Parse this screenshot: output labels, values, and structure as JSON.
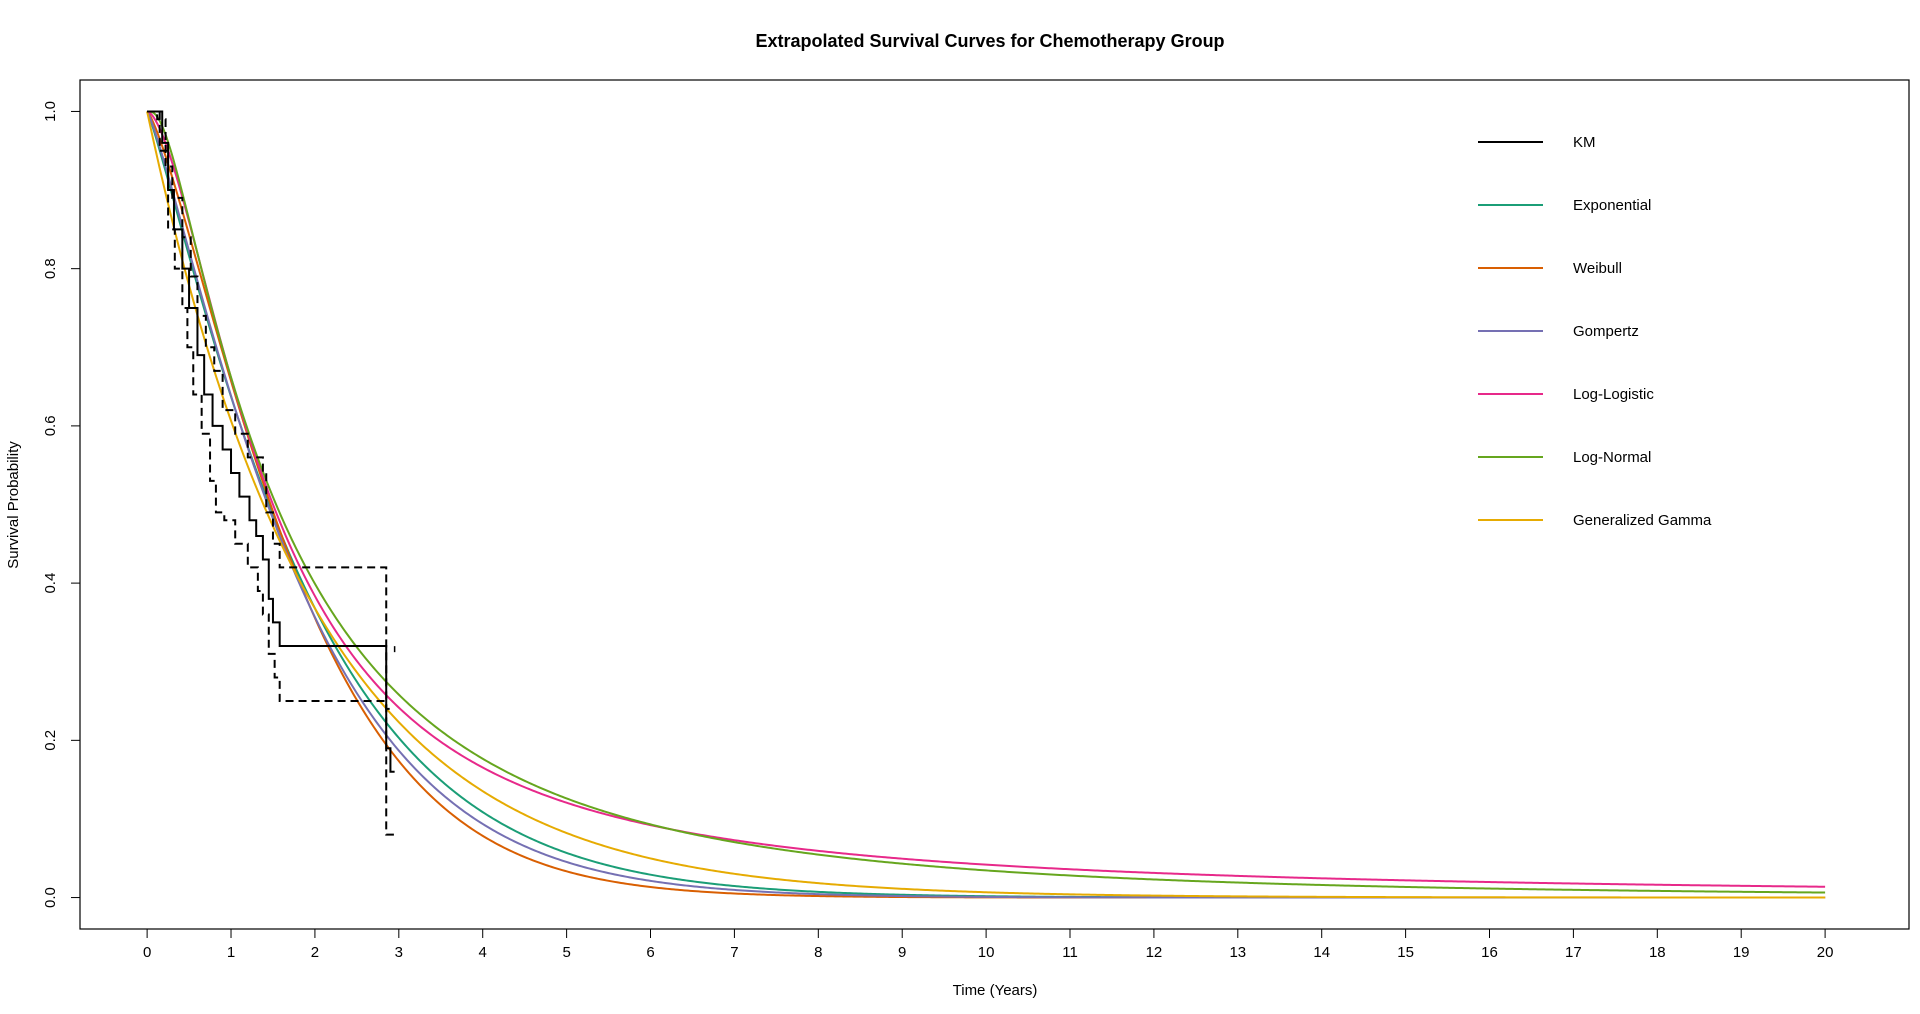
{
  "chart_data": {
    "type": "line",
    "title": "Extrapolated Survival Curves for Chemotherapy Group",
    "xlabel": "Time (Years)",
    "ylabel": "Survival Probability",
    "xlim": [
      -0.8,
      21.0
    ],
    "ylim": [
      -0.04,
      1.04
    ],
    "x_ticks": [
      0,
      1,
      2,
      3,
      4,
      5,
      6,
      7,
      8,
      9,
      10,
      11,
      12,
      13,
      14,
      15,
      16,
      17,
      18,
      19,
      20
    ],
    "x_tick_labels": [
      "0",
      "1",
      "2",
      "3",
      "4",
      "5",
      "6",
      "7",
      "8",
      "9",
      "10",
      "11",
      "12",
      "13",
      "14",
      "15",
      "16",
      "17",
      "18",
      "19",
      "20"
    ],
    "y_ticks": [
      0.0,
      0.2,
      0.4,
      0.6,
      0.8,
      1.0
    ],
    "y_tick_labels": [
      "0.0",
      "0.2",
      "0.4",
      "0.6",
      "0.8",
      "1.0"
    ],
    "grid": false,
    "legend_position": "top-right",
    "km": {
      "name": "KM",
      "color": "#000000",
      "steps": [
        [
          0,
          1.0
        ],
        [
          0.18,
          0.96
        ],
        [
          0.25,
          0.9
        ],
        [
          0.32,
          0.85
        ],
        [
          0.42,
          0.8
        ],
        [
          0.5,
          0.75
        ],
        [
          0.6,
          0.69
        ],
        [
          0.68,
          0.64
        ],
        [
          0.78,
          0.6
        ],
        [
          0.9,
          0.57
        ],
        [
          1.0,
          0.54
        ],
        [
          1.1,
          0.51
        ],
        [
          1.22,
          0.48
        ],
        [
          1.3,
          0.46
        ],
        [
          1.38,
          0.43
        ],
        [
          1.45,
          0.38
        ],
        [
          1.5,
          0.35
        ],
        [
          1.58,
          0.32
        ],
        [
          2.85,
          0.19
        ],
        [
          2.9,
          0.16
        ]
      ],
      "end_x": 2.95,
      "upper": [
        [
          0,
          1.0
        ],
        [
          0.12,
          0.99
        ],
        [
          0.22,
          0.93
        ],
        [
          0.3,
          0.89
        ],
        [
          0.42,
          0.84
        ],
        [
          0.52,
          0.79
        ],
        [
          0.6,
          0.74
        ],
        [
          0.7,
          0.7
        ],
        [
          0.8,
          0.67
        ],
        [
          0.9,
          0.62
        ],
        [
          1.05,
          0.59
        ],
        [
          1.2,
          0.56
        ],
        [
          1.38,
          0.54
        ],
        [
          1.42,
          0.49
        ],
        [
          1.5,
          0.45
        ],
        [
          1.58,
          0.42
        ],
        [
          2.85,
          0.08
        ]
      ],
      "upper_end_x": 2.95,
      "lower": [
        [
          0,
          1.0
        ],
        [
          0.15,
          0.95
        ],
        [
          0.25,
          0.85
        ],
        [
          0.33,
          0.8
        ],
        [
          0.42,
          0.75
        ],
        [
          0.48,
          0.7
        ],
        [
          0.55,
          0.64
        ],
        [
          0.65,
          0.59
        ],
        [
          0.75,
          0.53
        ],
        [
          0.82,
          0.49
        ],
        [
          0.92,
          0.48
        ],
        [
          1.05,
          0.45
        ],
        [
          1.2,
          0.42
        ],
        [
          1.32,
          0.39
        ],
        [
          1.38,
          0.36
        ],
        [
          1.45,
          0.31
        ],
        [
          1.52,
          0.28
        ],
        [
          1.58,
          0.25
        ],
        [
          2.75,
          0.25
        ],
        [
          2.85,
          0.24
        ]
      ],
      "lower_end_x": 2.9,
      "censor_marks": [
        [
          2.95,
          0.316
        ]
      ]
    },
    "series": [
      {
        "name": "Exponential",
        "model": "weibull",
        "params": {
          "scale": 2.0,
          "shape": 1.15
        },
        "color": "#1b9e77"
      },
      {
        "name": "Weibull",
        "model": "weibull",
        "params": {
          "scale": 1.95,
          "shape": 1.3
        },
        "color": "#d95f02"
      },
      {
        "name": "Gompertz",
        "model": "weibull",
        "params": {
          "scale": 1.95,
          "shape": 1.2
        },
        "color": "#7570b3"
      },
      {
        "name": "Log-Logistic",
        "model": "loglogistic",
        "params": {
          "scale": 1.5,
          "shape": 1.65
        },
        "color": "#e7298a"
      },
      {
        "name": "Log-Normal",
        "model": "lognormal",
        "params": {
          "mu": 0.43,
          "sigma": 1.03
        },
        "color": "#66a61e"
      },
      {
        "name": "Generalized Gamma",
        "model": "weibull",
        "params": {
          "scale": 2.0,
          "shape": 1.0
        },
        "color": "#e6ab02"
      }
    ]
  }
}
